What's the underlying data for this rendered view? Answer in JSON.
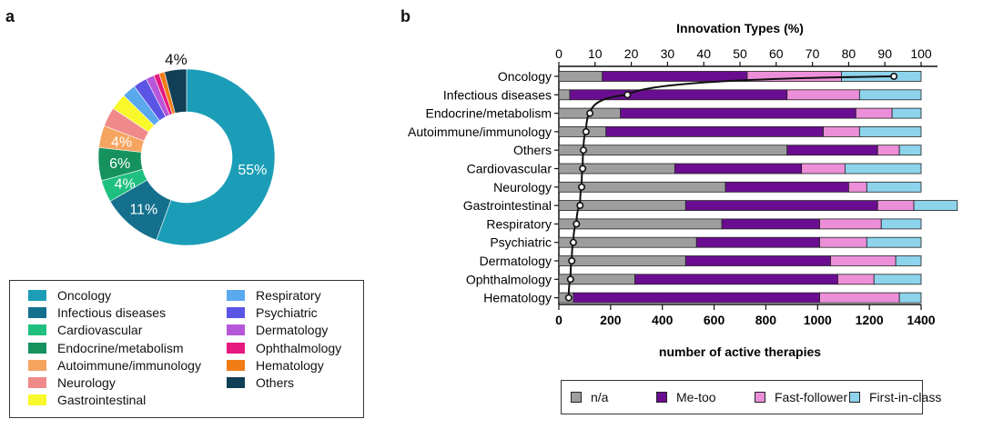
{
  "panels": {
    "a": "a",
    "b": "b"
  },
  "colors": {
    "Oncology": "#1b9db7",
    "Infectious diseases": "#14708d",
    "Cardiovascular": "#1fbf7f",
    "Endocrine/metabolism": "#16925e",
    "Autoimmune/immunology": "#f6a560",
    "Neurology": "#f08a8a",
    "Gastrointestinal": "#f8f82a",
    "Respiratory": "#5aa8ee",
    "Psychiatric": "#5b55e6",
    "Dermatology": "#b657d9",
    "Ophthalmology": "#e6197e",
    "Hematology": "#f07d16",
    "Others": "#113f55",
    "n/a": "#9e9e9e",
    "Me-too": "#6a0d91",
    "Fast-follower": "#ec8fd8",
    "First-in-class": "#8dd3ec"
  },
  "chart_data": [
    {
      "type": "pie",
      "subtype": "donut",
      "slices": [
        {
          "label": "Oncology",
          "value": 55,
          "text": "55%"
        },
        {
          "label": "Infectious diseases",
          "value": 11,
          "text": "11%"
        },
        {
          "label": "Cardiovascular",
          "value": 4,
          "text": "4%"
        },
        {
          "label": "Endocrine/metabolism",
          "value": 6,
          "text": "6%"
        },
        {
          "label": "Autoimmune/immunology",
          "value": 4,
          "text": "4%"
        },
        {
          "label": "Neurology",
          "value": 3.5,
          "text": ""
        },
        {
          "label": "Gastrointestinal",
          "value": 3,
          "text": ""
        },
        {
          "label": "Respiratory",
          "value": 2.5,
          "text": ""
        },
        {
          "label": "Psychiatric",
          "value": 2.5,
          "text": ""
        },
        {
          "label": "Dermatology",
          "value": 1.5,
          "text": ""
        },
        {
          "label": "Ophthalmology",
          "value": 1,
          "text": ""
        },
        {
          "label": "Hematology",
          "value": 1,
          "text": ""
        },
        {
          "label": "Others",
          "value": 4,
          "text": "4%"
        }
      ],
      "legend_left": [
        "Oncology",
        "Infectious diseases",
        "Cardiovascular",
        "Endocrine/metabolism",
        "Autoimmune/immunology",
        "Neurology",
        "Gastrointestinal"
      ],
      "legend_right": [
        "Respiratory",
        "Psychiatric",
        "Dermatology",
        "Ophthalmology",
        "Hematology",
        "Others"
      ],
      "legend_placement": "bottom"
    },
    {
      "type": "bar",
      "orientation": "horizontal",
      "stacked": true,
      "top_axis_title": "Innovation Types (%)",
      "top_axis_ticks": [
        "0",
        "10",
        "20",
        "30",
        "40",
        "50",
        "60",
        "70",
        "80",
        "90",
        "100"
      ],
      "xlabel": "number of active therapies",
      "xlim": [
        0,
        1400
      ],
      "bottom_axis_ticks": [
        "0",
        "200",
        "400",
        "600",
        "800",
        "1000",
        "1200",
        "1400"
      ],
      "categories": [
        "Oncology",
        "Infectious diseases",
        "Endocrine/metabolism",
        "Autoimmune/immunology",
        "Others",
        "Cardiovascular",
        "Neurology",
        "Gastrointestinal",
        "Respiratory",
        "Psychiatric",
        "Dermatology",
        "Ophthalmology",
        "Hematology"
      ],
      "series": [
        {
          "name": "n/a",
          "values": [
            12,
            3,
            17,
            13,
            63,
            32,
            46,
            35,
            45,
            38,
            35,
            21,
            4
          ]
        },
        {
          "name": "Me-too",
          "values": [
            40,
            60,
            65,
            60,
            25,
            35,
            34,
            53,
            27,
            34,
            40,
            56,
            68
          ]
        },
        {
          "name": "Fast-follower",
          "values": [
            26,
            20,
            10,
            10,
            6,
            12,
            5,
            10,
            17,
            13,
            18,
            10,
            22
          ]
        },
        {
          "name": "First-in-class",
          "values": [
            22,
            17,
            8,
            17,
            6,
            21,
            15,
            12,
            11,
            15,
            7,
            13,
            6
          ]
        }
      ],
      "therapies": [
        1295,
        265,
        120,
        105,
        95,
        92,
        88,
        82,
        68,
        56,
        50,
        45,
        38
      ],
      "legend": [
        "n/a",
        "Me-too",
        "Fast-follower",
        "First-in-class"
      ],
      "legend_placement": "bottom",
      "grid": false
    }
  ]
}
